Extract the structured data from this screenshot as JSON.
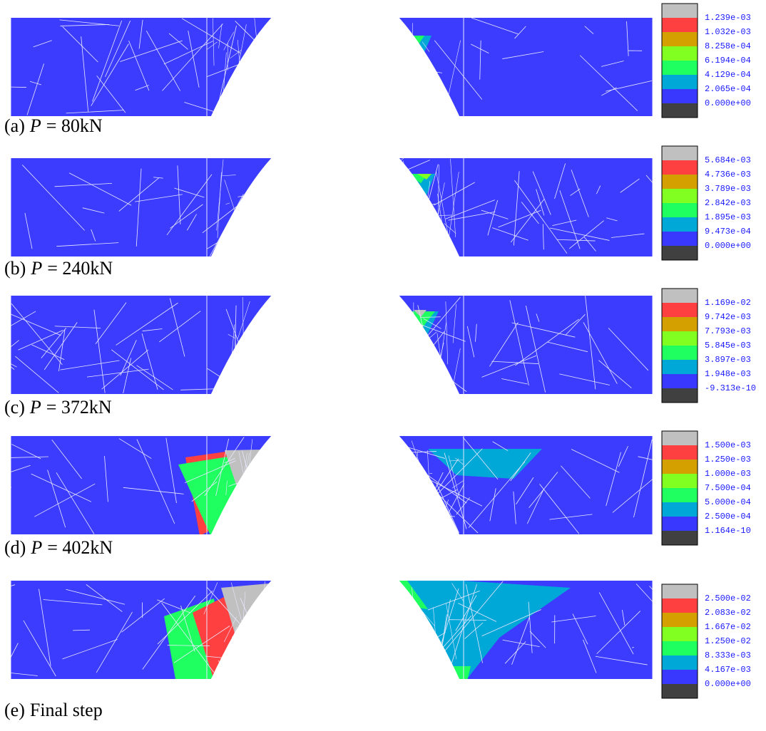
{
  "panels": [
    {
      "label": "(a)",
      "variable": "P",
      "text": "= 80kN",
      "legend": [
        "1.239e-03",
        "1.032e-03",
        "8.258e-04",
        "6.194e-04",
        "4.129e-04",
        "2.065e-04",
        "0.000e+00"
      ]
    },
    {
      "label": "(b)",
      "variable": "P",
      "text": "= 240kN",
      "legend": [
        "5.684e-03",
        "4.736e-03",
        "3.789e-03",
        "2.842e-03",
        "1.895e-03",
        "9.473e-04",
        "0.000e+00"
      ]
    },
    {
      "label": "(c)",
      "variable": "P",
      "text": "= 372kN",
      "legend": [
        "1.169e-02",
        "9.742e-03",
        "7.793e-03",
        "5.845e-03",
        "3.897e-03",
        "1.948e-03",
        "-9.313e-10"
      ]
    },
    {
      "label": "(d)",
      "variable": "P",
      "text": "= 402kN",
      "legend": [
        "1.500e-03",
        "1.250e-03",
        "1.000e-03",
        "7.500e-04",
        "5.000e-04",
        "2.500e-04",
        "1.164e-10"
      ]
    },
    {
      "label": "(e)",
      "text": "Final step",
      "legend": [
        "2.500e-02",
        "2.083e-02",
        "1.667e-02",
        "1.250e-02",
        "8.333e-03",
        "4.167e-03",
        "0.000e+00"
      ]
    }
  ]
}
